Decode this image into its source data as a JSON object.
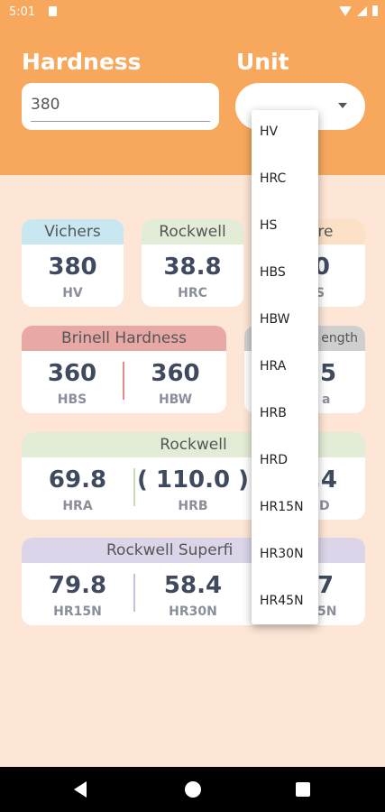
{
  "status_bar": {
    "time": "5:01"
  },
  "header": {
    "hardness_label": "Hardness",
    "unit_label": "Unit",
    "hardness_value": "380"
  },
  "cards": {
    "vichers": {
      "title": "Vichers",
      "value": "380",
      "unit": "HV"
    },
    "rockwell_c": {
      "title": "Rockwell",
      "value": "38.8",
      "unit": "HRC"
    },
    "shore": {
      "title": "ore",
      "value": ".0",
      "unit": "S"
    },
    "brinell": {
      "title": "Brinell Hardness",
      "left": {
        "value": "360",
        "unit": "HBS"
      },
      "right": {
        "value": "360",
        "unit": "HBW"
      }
    },
    "tensile": {
      "title": "ength",
      "value": "5",
      "unit": "a"
    },
    "rockwell": {
      "title": "Rockwell",
      "items": [
        {
          "value": "69.8",
          "unit": "HRA"
        },
        {
          "value": "( 110.0 )",
          "unit": "HRB"
        },
        {
          "value": ".4",
          "unit": "D"
        }
      ]
    },
    "superficial": {
      "title": "Rockwell Superfi",
      "items": [
        {
          "value": "79.8",
          "unit": "HR15N"
        },
        {
          "value": "58.4",
          "unit": "HR30N"
        },
        {
          "value": "7",
          "unit": "5N"
        }
      ]
    }
  },
  "dropdown": {
    "options": [
      "HV",
      "HRC",
      "HS",
      "HBS",
      "HBW",
      "HRA",
      "HRB",
      "HRD",
      "HR15N",
      "HR30N",
      "HR45N"
    ]
  },
  "colors": {
    "header": "#f7a85c",
    "background": "#fde6d6",
    "vichers_head": "#c9e7f1",
    "rockwell_head": "#e3ecd6",
    "shore_head": "#fde1c6",
    "brinell_head": "#e8a9a5",
    "tensile_head": "#cfcfcf",
    "superficial_head": "#dcd5ea",
    "brinell_sep": "#e58c87",
    "rockwell_sep": "#c9dcb6",
    "superficial_sep": "#c7c0dd"
  }
}
